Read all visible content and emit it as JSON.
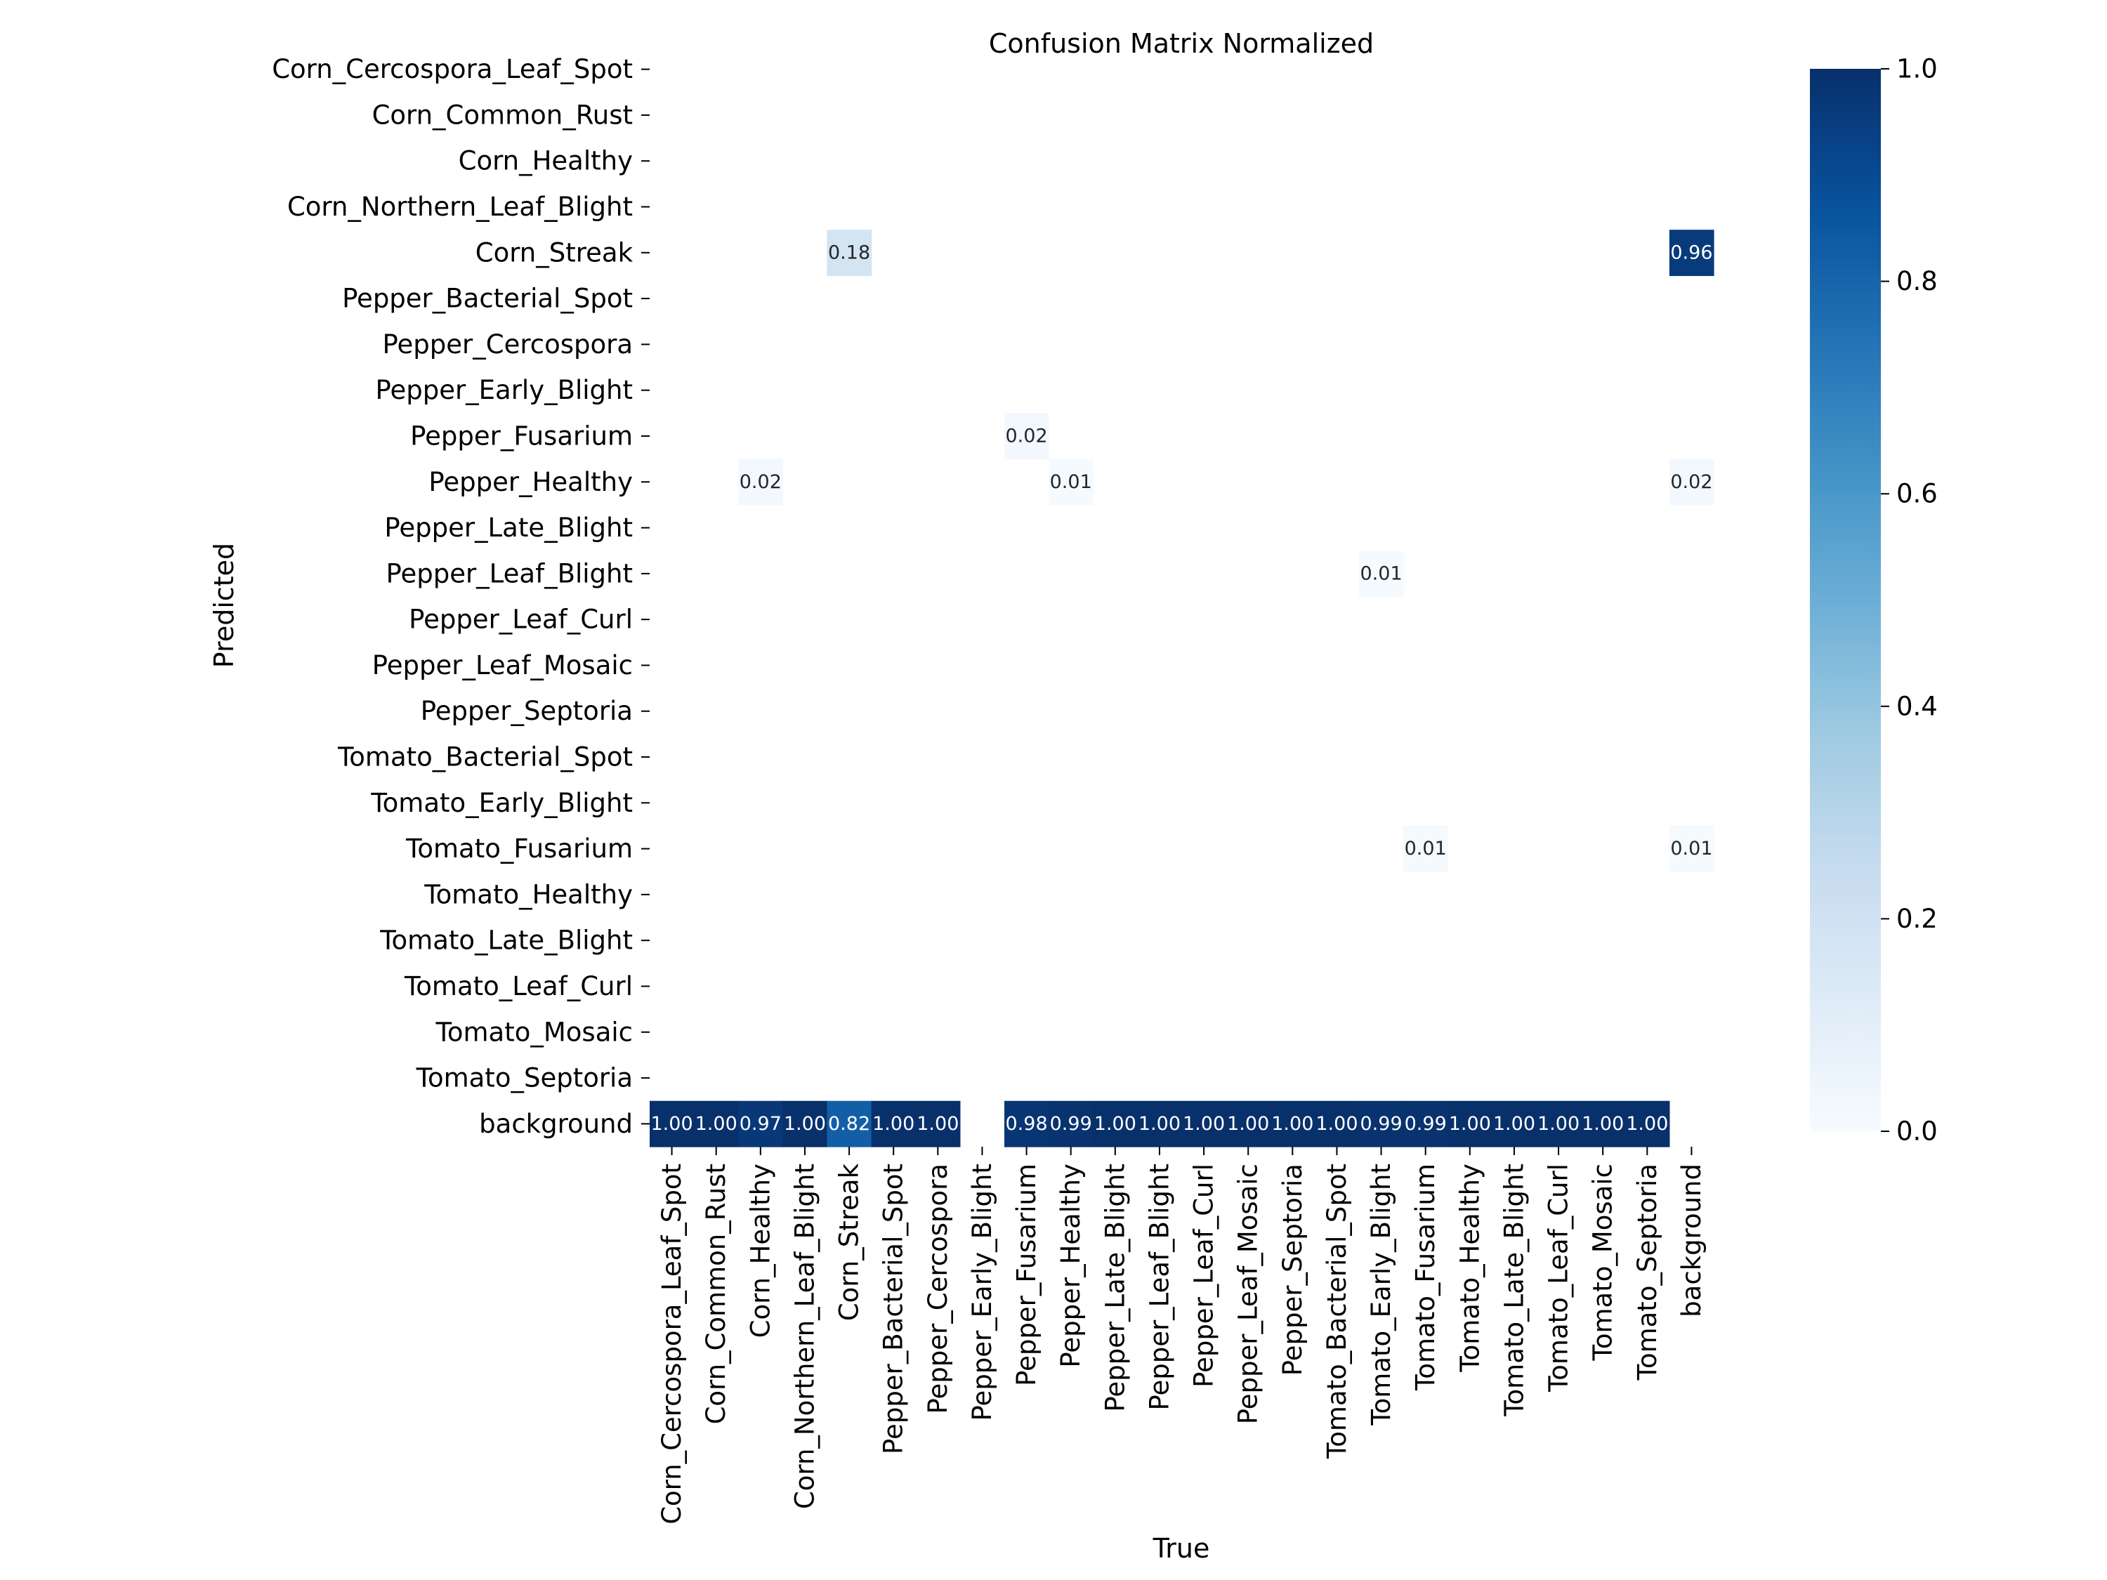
{
  "chart_data": {
    "type": "heatmap",
    "title": "Confusion Matrix Normalized",
    "xlabel": "True",
    "ylabel": "Predicted",
    "colormap": "Blues",
    "value_range": [
      0,
      1
    ],
    "colorbar": {
      "ticks": [
        "0.0",
        "0.2",
        "0.4",
        "0.6",
        "0.8",
        "1.0"
      ]
    },
    "x_categories": [
      "Corn_Cercospora_Leaf_Spot",
      "Corn_Common_Rust",
      "Corn_Healthy",
      "Corn_Northern_Leaf_Blight",
      "Corn_Streak",
      "Pepper_Bacterial_Spot",
      "Pepper_Cercospora",
      "Pepper_Early_Blight",
      "Pepper_Fusarium",
      "Pepper_Healthy",
      "Pepper_Late_Blight",
      "Pepper_Leaf_Blight",
      "Pepper_Leaf_Curl",
      "Pepper_Leaf_Mosaic",
      "Pepper_Septoria",
      "Tomato_Bacterial_Spot",
      "Tomato_Early_Blight",
      "Tomato_Fusarium",
      "Tomato_Healthy",
      "Tomato_Late_Blight",
      "Tomato_Leaf_Curl",
      "Tomato_Mosaic",
      "Tomato_Septoria",
      "background"
    ],
    "y_categories": [
      "Corn_Cercospora_Leaf_Spot",
      "Corn_Common_Rust",
      "Corn_Healthy",
      "Corn_Northern_Leaf_Blight",
      "Corn_Streak",
      "Pepper_Bacterial_Spot",
      "Pepper_Cercospora",
      "Pepper_Early_Blight",
      "Pepper_Fusarium",
      "Pepper_Healthy",
      "Pepper_Late_Blight",
      "Pepper_Leaf_Blight",
      "Pepper_Leaf_Curl",
      "Pepper_Leaf_Mosaic",
      "Pepper_Septoria",
      "Tomato_Bacterial_Spot",
      "Tomato_Early_Blight",
      "Tomato_Fusarium",
      "Tomato_Healthy",
      "Tomato_Late_Blight",
      "Tomato_Leaf_Curl",
      "Tomato_Mosaic",
      "Tomato_Septoria",
      "background"
    ],
    "cells": [
      {
        "row": "Corn_Streak",
        "col": "Corn_Streak",
        "value": 0.18,
        "label": "0.18"
      },
      {
        "row": "Corn_Streak",
        "col": "background",
        "value": 0.96,
        "label": "0.96"
      },
      {
        "row": "Pepper_Fusarium",
        "col": "Pepper_Fusarium",
        "value": 0.02,
        "label": "0.02"
      },
      {
        "row": "Pepper_Healthy",
        "col": "Corn_Healthy",
        "value": 0.02,
        "label": "0.02"
      },
      {
        "row": "Pepper_Healthy",
        "col": "Pepper_Healthy",
        "value": 0.01,
        "label": "0.01"
      },
      {
        "row": "Pepper_Healthy",
        "col": "background",
        "value": 0.02,
        "label": "0.02"
      },
      {
        "row": "Pepper_Leaf_Blight",
        "col": "Tomato_Early_Blight",
        "value": 0.01,
        "label": "0.01"
      },
      {
        "row": "Tomato_Fusarium",
        "col": "Tomato_Fusarium",
        "value": 0.01,
        "label": "0.01"
      },
      {
        "row": "Tomato_Fusarium",
        "col": "background",
        "value": 0.01,
        "label": "0.01"
      },
      {
        "row": "background",
        "col": "Corn_Cercospora_Leaf_Spot",
        "value": 1.0,
        "label": "1.00"
      },
      {
        "row": "background",
        "col": "Corn_Common_Rust",
        "value": 1.0,
        "label": "1.00"
      },
      {
        "row": "background",
        "col": "Corn_Healthy",
        "value": 0.97,
        "label": "0.97"
      },
      {
        "row": "background",
        "col": "Corn_Northern_Leaf_Blight",
        "value": 1.0,
        "label": "1.00"
      },
      {
        "row": "background",
        "col": "Corn_Streak",
        "value": 0.82,
        "label": "0.82"
      },
      {
        "row": "background",
        "col": "Pepper_Bacterial_Spot",
        "value": 1.0,
        "label": "1.00"
      },
      {
        "row": "background",
        "col": "Pepper_Cercospora",
        "value": 1.0,
        "label": "1.00"
      },
      {
        "row": "background",
        "col": "Pepper_Fusarium",
        "value": 0.98,
        "label": "0.98"
      },
      {
        "row": "background",
        "col": "Pepper_Healthy",
        "value": 0.99,
        "label": "0.99"
      },
      {
        "row": "background",
        "col": "Pepper_Late_Blight",
        "value": 1.0,
        "label": "1.00"
      },
      {
        "row": "background",
        "col": "Pepper_Leaf_Blight",
        "value": 1.0,
        "label": "1.00"
      },
      {
        "row": "background",
        "col": "Pepper_Leaf_Curl",
        "value": 1.0,
        "label": "1.00"
      },
      {
        "row": "background",
        "col": "Pepper_Leaf_Mosaic",
        "value": 1.0,
        "label": "1.00"
      },
      {
        "row": "background",
        "col": "Pepper_Septoria",
        "value": 1.0,
        "label": "1.00"
      },
      {
        "row": "background",
        "col": "Tomato_Bacterial_Spot",
        "value": 1.0,
        "label": "1.00"
      },
      {
        "row": "background",
        "col": "Tomato_Early_Blight",
        "value": 0.99,
        "label": "0.99"
      },
      {
        "row": "background",
        "col": "Tomato_Fusarium",
        "value": 0.99,
        "label": "0.99"
      },
      {
        "row": "background",
        "col": "Tomato_Healthy",
        "value": 1.0,
        "label": "1.00"
      },
      {
        "row": "background",
        "col": "Tomato_Late_Blight",
        "value": 1.0,
        "label": "1.00"
      },
      {
        "row": "background",
        "col": "Tomato_Leaf_Curl",
        "value": 1.0,
        "label": "1.00"
      },
      {
        "row": "background",
        "col": "Tomato_Mosaic",
        "value": 1.0,
        "label": "1.00"
      },
      {
        "row": "background",
        "col": "Tomato_Septoria",
        "value": 1.0,
        "label": "1.00"
      }
    ]
  }
}
